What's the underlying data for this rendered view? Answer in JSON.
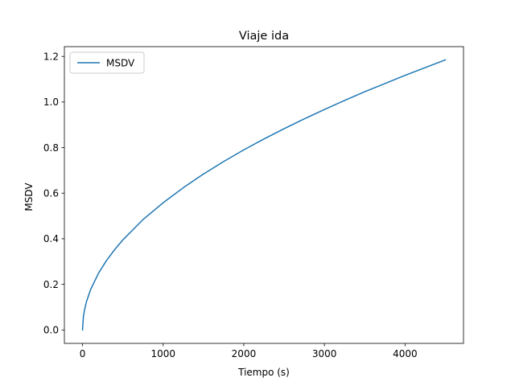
{
  "chart_data": {
    "type": "line",
    "title": "Viaje ida",
    "xlabel": "Tiempo (s)",
    "ylabel": "MSDV",
    "xlim": [
      -225,
      4725
    ],
    "ylim": [
      -0.059,
      1.243
    ],
    "xticks": [
      0,
      1000,
      2000,
      3000,
      4000
    ],
    "yticks": [
      0.0,
      0.2,
      0.4,
      0.6,
      0.8,
      1.0,
      1.2
    ],
    "xtick_labels": [
      "0",
      "1000",
      "2000",
      "3000",
      "4000"
    ],
    "ytick_labels": [
      "0.0",
      "0.2",
      "0.4",
      "0.6",
      "0.8",
      "1.0",
      "1.2"
    ],
    "grid": false,
    "legend": {
      "position": "top-left",
      "entries": [
        "MSDV"
      ]
    },
    "series": [
      {
        "name": "MSDV",
        "color": "#1f77b4",
        "x": [
          0,
          10,
          25,
          50,
          100,
          200,
          300,
          400,
          500,
          750,
          1000,
          1250,
          1500,
          1750,
          2000,
          2250,
          2500,
          2750,
          3000,
          3250,
          3500,
          3750,
          4000,
          4250,
          4500
        ],
        "y": [
          0.0,
          0.056,
          0.088,
          0.125,
          0.177,
          0.25,
          0.306,
          0.353,
          0.395,
          0.484,
          0.558,
          0.624,
          0.684,
          0.739,
          0.79,
          0.838,
          0.883,
          0.926,
          0.967,
          1.007,
          1.045,
          1.081,
          1.117,
          1.151,
          1.185
        ]
      }
    ]
  }
}
